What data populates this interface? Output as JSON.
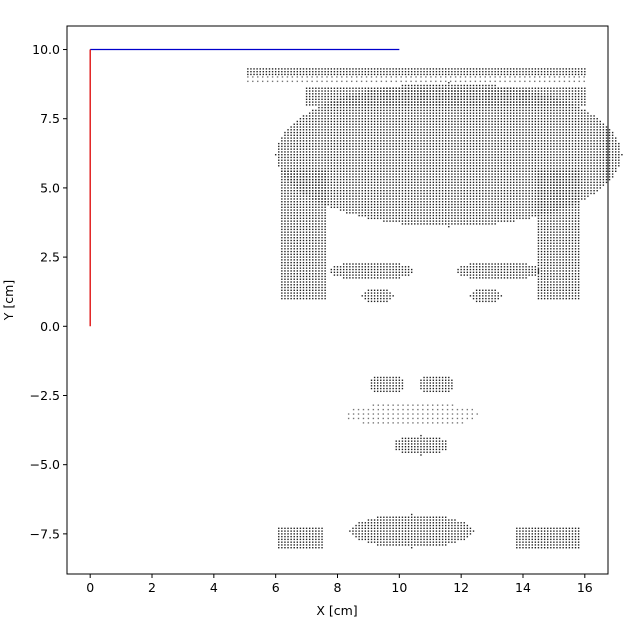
{
  "chart_data": {
    "type": "scatter",
    "title": "",
    "xlabel": "X [cm]",
    "ylabel": "Y [cm]",
    "xlim": [
      -0.75,
      16.75
    ],
    "ylim": [
      -8.95,
      10.85
    ],
    "xticks": [
      0,
      2,
      4,
      6,
      8,
      10,
      12,
      14,
      16
    ],
    "yticks": [
      -7.5,
      -5.0,
      -2.5,
      0.0,
      2.5,
      5.0,
      7.5,
      10.0
    ],
    "xtick_labels": [
      "0",
      "2",
      "4",
      "6",
      "8",
      "10",
      "12",
      "14",
      "16"
    ],
    "ytick_labels": [
      "−7.5",
      "−5.0",
      "−2.5",
      "0.0",
      "2.5",
      "5.0",
      "7.5",
      "10.0"
    ],
    "grid": false,
    "legend": "none",
    "series": [
      {
        "kind": "line",
        "color": "#0000cc",
        "x": [
          0,
          10
        ],
        "y": [
          10,
          10
        ]
      },
      {
        "kind": "line",
        "color": "#dd0000",
        "x": [
          0,
          0
        ],
        "y": [
          0,
          10
        ]
      },
      {
        "kind": "scatter",
        "color": "#222222",
        "marker_spacing": 0.1,
        "regions": [
          {
            "shape": "rect",
            "x": [
              5.1,
              16.0
            ],
            "y": [
              9.1,
              9.3
            ]
          },
          {
            "shape": "rect",
            "x": [
              5.1,
              16.0
            ],
            "y": [
              8.85,
              9.05
            ],
            "density": "light"
          },
          {
            "shape": "ellipse",
            "cx": 11.6,
            "cy": 6.2,
            "rx": 5.6,
            "ry": 2.6
          },
          {
            "shape": "rect",
            "x": [
              6.2,
              7.6
            ],
            "y": [
              1.0,
              5.6
            ]
          },
          {
            "shape": "rect",
            "x": [
              14.5,
              15.8
            ],
            "y": [
              1.0,
              5.6
            ]
          },
          {
            "shape": "rect",
            "x": [
              7.0,
              16.0
            ],
            "y": [
              8.0,
              8.6
            ]
          },
          {
            "shape": "ellipse",
            "cx": 9.1,
            "cy": 2.0,
            "rx": 1.4,
            "ry": 0.35
          },
          {
            "shape": "ellipse",
            "cx": 13.2,
            "cy": 2.0,
            "rx": 1.4,
            "ry": 0.35
          },
          {
            "shape": "ellipse",
            "cx": 9.3,
            "cy": 1.1,
            "rx": 0.5,
            "ry": 0.3
          },
          {
            "shape": "ellipse",
            "cx": 12.8,
            "cy": 1.1,
            "rx": 0.5,
            "ry": 0.3
          },
          {
            "shape": "ellipse",
            "cx": 9.6,
            "cy": -2.1,
            "rx": 0.6,
            "ry": 0.35
          },
          {
            "shape": "ellipse",
            "cx": 11.2,
            "cy": -2.1,
            "rx": 0.6,
            "ry": 0.35
          },
          {
            "shape": "ellipse",
            "cx": 10.4,
            "cy": -3.2,
            "rx": 2.2,
            "ry": 0.45,
            "density": "light"
          },
          {
            "shape": "ellipse",
            "cx": 10.7,
            "cy": -4.3,
            "rx": 0.9,
            "ry": 0.35
          },
          {
            "shape": "ellipse",
            "cx": 10.4,
            "cy": -7.4,
            "rx": 2.0,
            "ry": 0.6
          },
          {
            "shape": "rect",
            "x": [
              6.1,
              7.5
            ],
            "y": [
              -8.0,
              -7.3
            ]
          },
          {
            "shape": "rect",
            "x": [
              13.8,
              15.8
            ],
            "y": [
              -8.0,
              -7.3
            ]
          }
        ]
      }
    ]
  }
}
